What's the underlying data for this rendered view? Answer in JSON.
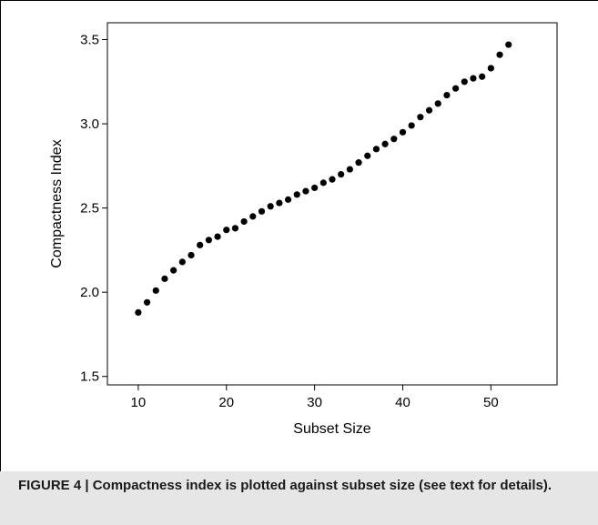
{
  "chart_data": {
    "type": "scatter",
    "title": "",
    "xlabel": "Subset Size",
    "ylabel": "Compactness Index",
    "xlim": [
      6.5,
      57.5
    ],
    "ylim": [
      1.45,
      3.6
    ],
    "xticks": [
      10,
      20,
      30,
      40,
      50
    ],
    "yticks": [
      1.5,
      2.0,
      2.5,
      3.0,
      3.5
    ],
    "x_tick_labels": [
      "10",
      "20",
      "30",
      "40",
      "50"
    ],
    "y_tick_labels": [
      "1.5",
      "2.0",
      "2.5",
      "3.0",
      "3.5"
    ],
    "grid": false,
    "marker_color": "#000000",
    "series": [
      {
        "x": [
          10,
          11,
          12,
          13,
          14,
          15,
          16,
          17,
          18,
          19,
          20,
          21,
          22,
          23,
          24,
          25,
          26,
          27,
          28,
          29,
          30,
          31,
          32,
          33,
          34,
          35,
          36,
          37,
          38,
          39,
          40,
          41,
          42,
          43,
          44,
          45,
          46,
          47,
          48,
          49,
          50,
          51,
          52
        ],
        "y": [
          1.88,
          1.94,
          2.01,
          2.08,
          2.13,
          2.18,
          2.22,
          2.28,
          2.31,
          2.33,
          2.37,
          2.38,
          2.42,
          2.45,
          2.48,
          2.51,
          2.53,
          2.55,
          2.58,
          2.6,
          2.62,
          2.65,
          2.67,
          2.7,
          2.73,
          2.77,
          2.81,
          2.85,
          2.88,
          2.91,
          2.95,
          2.99,
          3.04,
          3.08,
          3.12,
          3.17,
          3.21,
          3.25,
          3.27,
          3.28,
          3.33,
          3.41,
          3.47
        ]
      }
    ]
  },
  "caption": {
    "text": "FIGURE 4 | Compactness index is plotted against subset size (see text for details)."
  }
}
